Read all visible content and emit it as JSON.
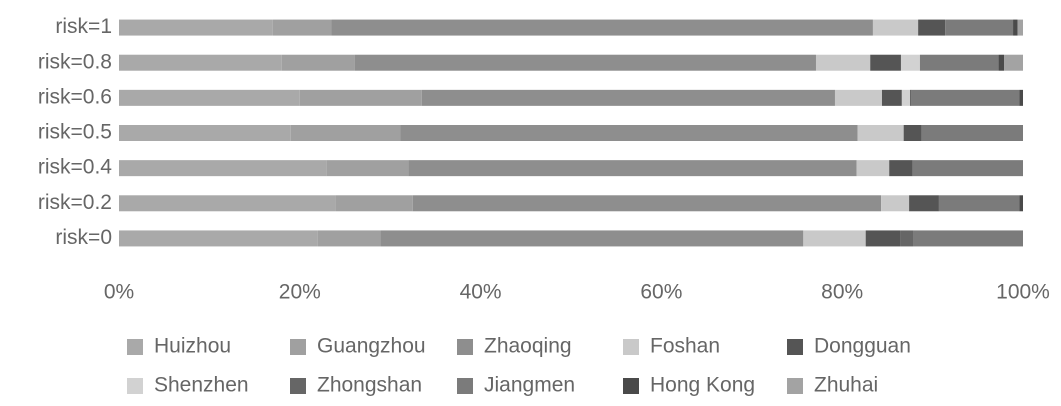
{
  "chart_data": {
    "type": "stacked-barh",
    "categories": [
      "risk=1",
      "risk=0.8",
      "risk=0.6",
      "risk=0.5",
      "risk=0.4",
      "risk=0.2",
      "risk=0"
    ],
    "series": [
      {
        "name": "Huizhou",
        "color": "#a9a9a9",
        "values": [
          17,
          18,
          20,
          19,
          23,
          24,
          22
        ]
      },
      {
        "name": "Guangzhou",
        "color": "#a0a0a0",
        "values": [
          6.5,
          8.1,
          13.5,
          12.1,
          9,
          8.5,
          6.9
        ]
      },
      {
        "name": "Zhaoqing",
        "color": "#8e8e8e",
        "values": [
          59.9,
          51,
          45.7,
          50.6,
          49.6,
          51.8,
          46.8
        ]
      },
      {
        "name": "Foshan",
        "color": "#c9c9c9",
        "values": [
          5,
          6,
          5.2,
          5.1,
          3.6,
          3.1,
          6.9
        ]
      },
      {
        "name": "Dongguan",
        "color": "#555555",
        "values": [
          3,
          3.4,
          2.2,
          2,
          2.6,
          3.3,
          3.8
        ]
      },
      {
        "name": "Shenzhen",
        "color": "#d2d2d2",
        "values": [
          0,
          2.1,
          0.9,
          0,
          0,
          0,
          0
        ]
      },
      {
        "name": "Zhongshan",
        "color": "#666666",
        "values": [
          0,
          0,
          0.2,
          0,
          0,
          0,
          1.5
        ]
      },
      {
        "name": "Jiangmen",
        "color": "#7b7b7b",
        "values": [
          7.5,
          8.7,
          11.9,
          11.2,
          12.2,
          8.9,
          12.1
        ]
      },
      {
        "name": "Hong Kong",
        "color": "#4a4a4a",
        "values": [
          0.5,
          0.6,
          0.4,
          0,
          0,
          0.4,
          0
        ]
      },
      {
        "name": "Zhuhai",
        "color": "#a3a3a3",
        "values": [
          0.6,
          2.1,
          0,
          0,
          0,
          0,
          0
        ]
      }
    ],
    "xlim": [
      0,
      100
    ],
    "xticks": [
      {
        "value": 0,
        "label": "0%"
      },
      {
        "value": 20,
        "label": "20%"
      },
      {
        "value": 40,
        "label": "40%"
      },
      {
        "value": 60,
        "label": "60%"
      },
      {
        "value": 80,
        "label": "80%"
      },
      {
        "value": 100,
        "label": "100%"
      }
    ]
  }
}
